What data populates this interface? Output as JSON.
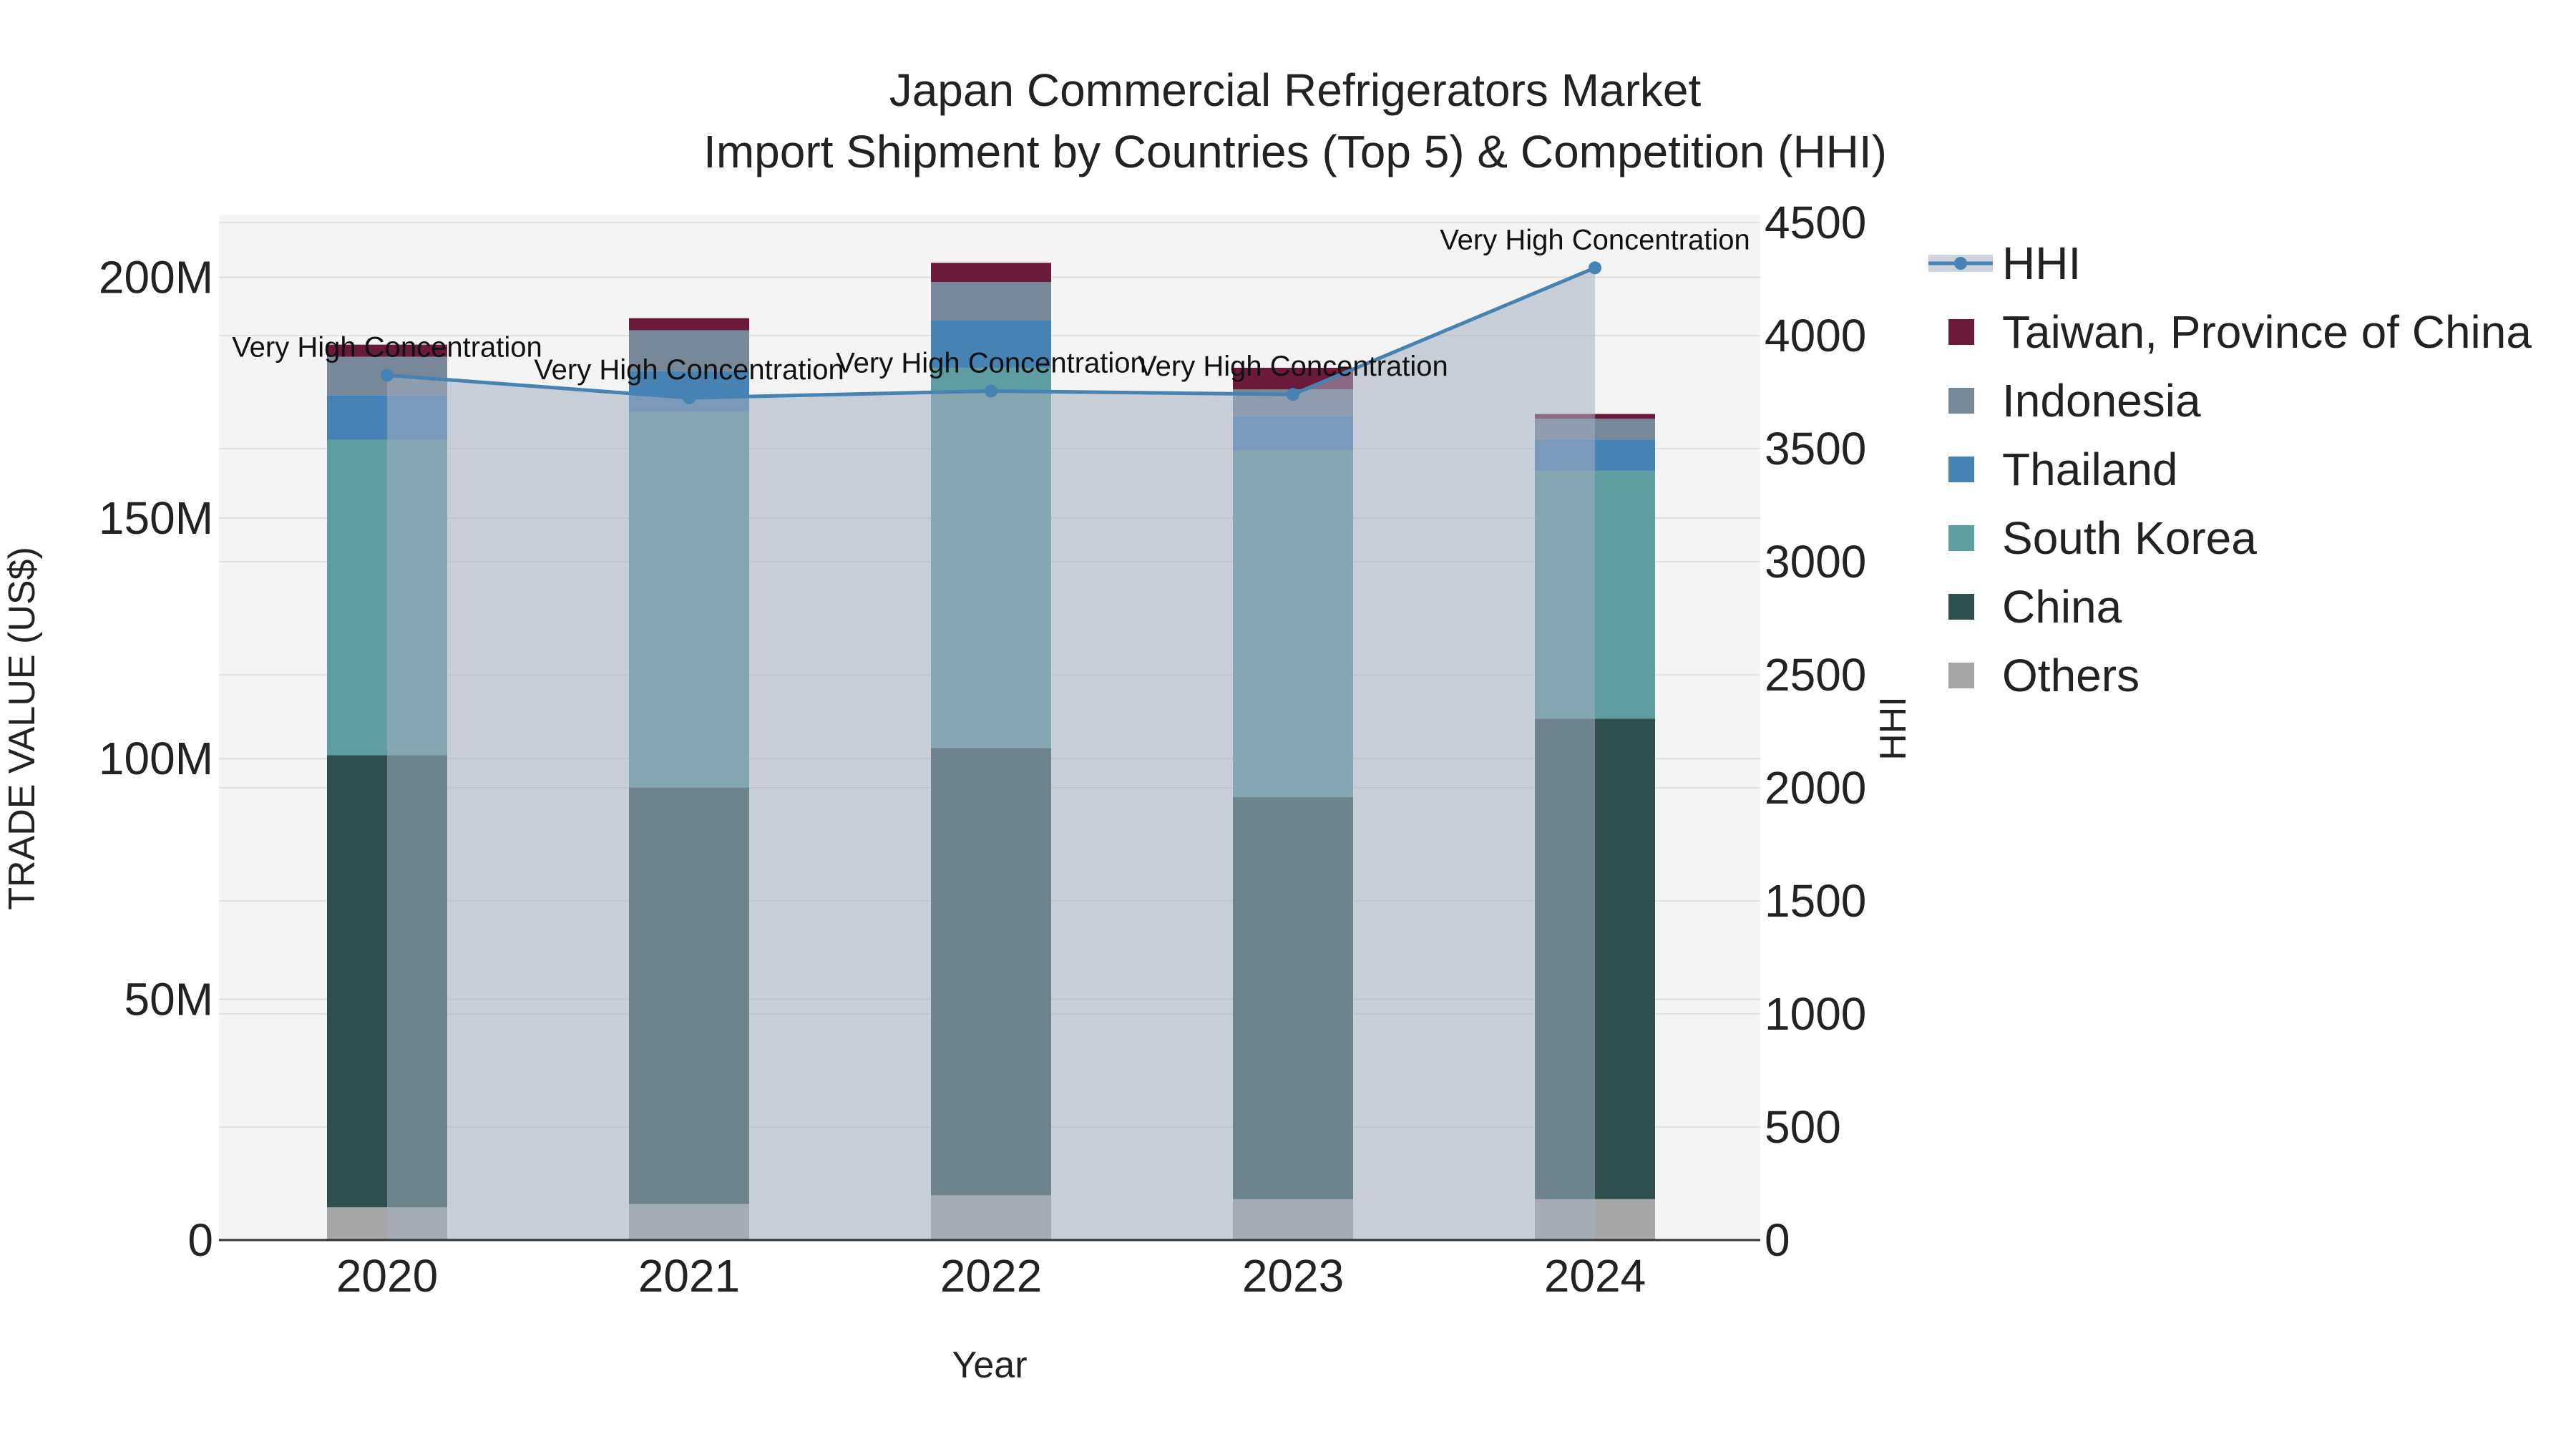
{
  "chart_data": {
    "type": "bar",
    "stacked": true,
    "title_line1": "Japan Commercial Refrigerators Market",
    "title_line2": "Import Shipment by Countries (Top 5) & Competition (HHI)",
    "xlabel": "Year",
    "ylabel": "TRADE VALUE (US$)",
    "y2label": "HHI",
    "categories": [
      "2020",
      "2021",
      "2022",
      "2023",
      "2024"
    ],
    "ylim": [
      0,
      213
    ],
    "y_ticks": [
      0,
      50,
      100,
      150,
      200
    ],
    "y_tick_labels": [
      "0",
      "50M",
      "100M",
      "150M",
      "200M"
    ],
    "y2lim": [
      0,
      4535
    ],
    "y2_ticks": [
      0,
      500,
      1000,
      1500,
      2000,
      2500,
      3000,
      3500,
      4000,
      4500
    ],
    "y2_tick_labels": [
      "0",
      "500",
      "1000",
      "1500",
      "2000",
      "2500",
      "3000",
      "3500",
      "4000",
      "4500"
    ],
    "series": [
      {
        "name": "Others",
        "color": "#a6a6a6",
        "values": [
          6.8,
          7.5,
          9.3,
          8.5,
          8.5
        ]
      },
      {
        "name": "China",
        "color": "#2f4f4f",
        "values": [
          93.9,
          86.5,
          92.9,
          83.5,
          99.8
        ]
      },
      {
        "name": "South Korea",
        "color": "#5f9ea0",
        "values": [
          65.5,
          78.0,
          79.0,
          72.0,
          51.5
        ]
      },
      {
        "name": "Thailand",
        "color": "#4682b4",
        "values": [
          9.3,
          8.5,
          9.8,
          7.2,
          6.5
        ]
      },
      {
        "name": "Indonesia",
        "color": "#778899",
        "values": [
          8.0,
          8.5,
          8.0,
          5.5,
          4.3
        ]
      },
      {
        "name": "Taiwan, Province of China",
        "color": "#6b1a3a",
        "values": [
          2.5,
          2.5,
          4.0,
          4.5,
          1.0
        ]
      }
    ],
    "hhi": {
      "name": "HHI",
      "color": "#4682b4",
      "fill": "rgba(164,174,192,0.55)",
      "values": [
        3825,
        3725,
        3755,
        3740,
        4300
      ],
      "labels": [
        "Very High Concentration",
        "Very High Concentration",
        "Very High Concentration",
        "Very High Concentration",
        "Very High Concentration"
      ]
    },
    "legend_order": [
      "HHI",
      "Taiwan, Province of China",
      "Indonesia",
      "Thailand",
      "South Korea",
      "China",
      "Others"
    ],
    "legend_position": "right",
    "grid": true
  }
}
